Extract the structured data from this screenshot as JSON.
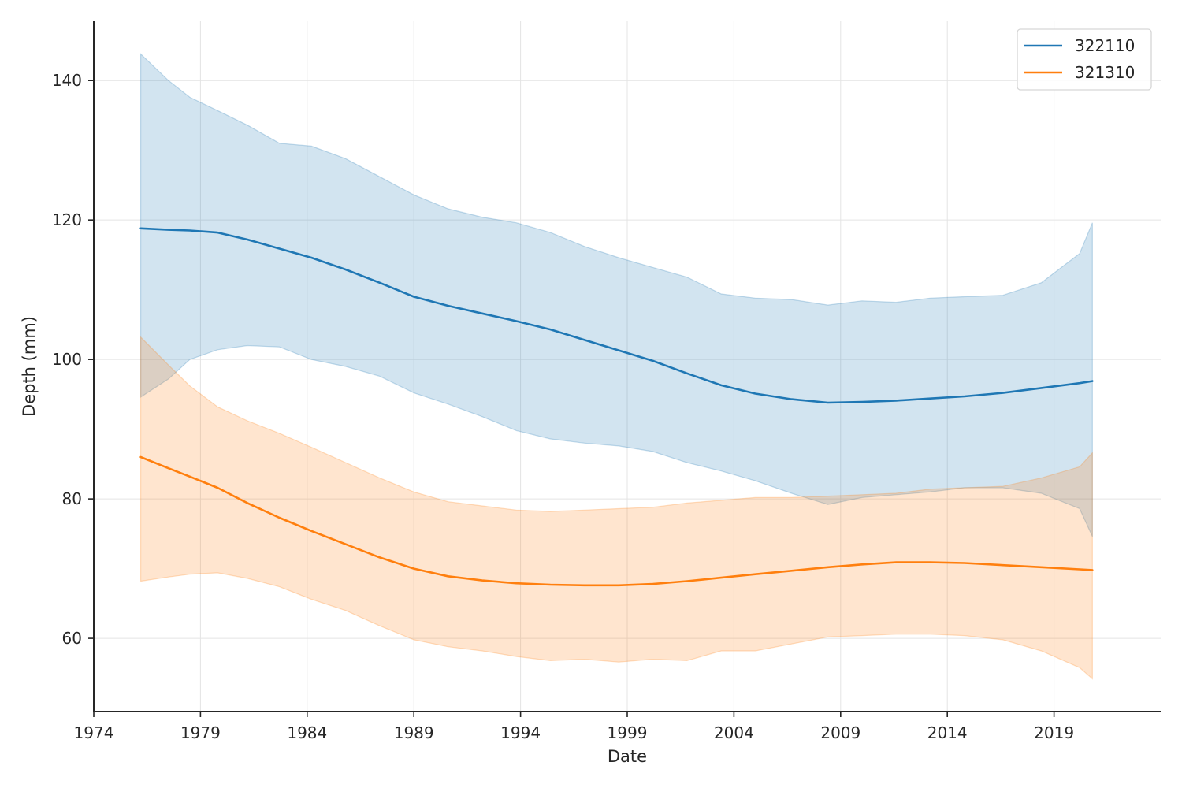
{
  "chart_data": {
    "type": "line",
    "title": "",
    "xlabel": "Date",
    "ylabel": "Depth (mm)",
    "xlim": [
      1974,
      2024
    ],
    "ylim": [
      49.5,
      148.5
    ],
    "xticks": [
      1974,
      1979,
      1984,
      1989,
      1994,
      1999,
      2004,
      2009,
      2014,
      2019
    ],
    "yticks": [
      60,
      80,
      100,
      120,
      140
    ],
    "grid": true,
    "legend_position": "top-right",
    "series": [
      {
        "name": "322110",
        "color": "#1f77b4",
        "x": [
          1976.2,
          1977.5,
          1978.5,
          1979.8,
          1981.2,
          1982.7,
          1984.2,
          1985.8,
          1987.4,
          1989.0,
          1990.6,
          1992.2,
          1993.8,
          1995.4,
          1997.0,
          1998.6,
          2000.2,
          2001.8,
          2003.4,
          2005.0,
          2006.7,
          2008.4,
          2010.0,
          2011.6,
          2013.2,
          2014.8,
          2016.6,
          2018.4,
          2020.2,
          2020.8
        ],
        "y": [
          118.8,
          118.6,
          118.5,
          118.2,
          117.2,
          115.9,
          114.6,
          112.9,
          111.0,
          109.0,
          107.7,
          106.6,
          105.5,
          104.3,
          102.8,
          101.3,
          99.8,
          98.0,
          96.3,
          95.1,
          94.3,
          93.8,
          93.9,
          94.1,
          94.4,
          94.7,
          95.2,
          95.9,
          96.6,
          96.9
        ],
        "upper": [
          143.8,
          140.0,
          137.6,
          135.7,
          133.6,
          131.0,
          130.6,
          128.8,
          126.2,
          123.6,
          121.6,
          120.4,
          119.6,
          118.2,
          116.2,
          114.6,
          113.2,
          111.8,
          109.4,
          108.8,
          108.6,
          107.8,
          108.4,
          108.2,
          108.8,
          109.0,
          109.2,
          111.0,
          115.2,
          119.6
        ],
        "lower": [
          94.6,
          97.2,
          100.0,
          101.4,
          102.0,
          101.8,
          100.0,
          99.0,
          97.6,
          95.2,
          93.6,
          91.8,
          89.8,
          88.6,
          88.0,
          87.6,
          86.8,
          85.2,
          84.0,
          82.6,
          80.8,
          79.2,
          80.2,
          80.6,
          81.0,
          81.6,
          81.6,
          80.8,
          78.6,
          74.6
        ]
      },
      {
        "name": "321310",
        "color": "#ff7f0e",
        "x": [
          1976.2,
          1977.5,
          1978.5,
          1979.8,
          1981.2,
          1982.7,
          1984.2,
          1985.8,
          1987.4,
          1989.0,
          1990.6,
          1992.2,
          1993.8,
          1995.4,
          1997.0,
          1998.6,
          2000.2,
          2001.8,
          2003.4,
          2005.0,
          2006.7,
          2008.4,
          2010.0,
          2011.6,
          2013.2,
          2014.8,
          2016.6,
          2018.4,
          2020.2,
          2020.8
        ],
        "y": [
          86.0,
          84.4,
          83.2,
          81.6,
          79.4,
          77.3,
          75.4,
          73.5,
          71.6,
          70.0,
          68.9,
          68.3,
          67.9,
          67.7,
          67.6,
          67.6,
          67.8,
          68.2,
          68.7,
          69.2,
          69.7,
          70.2,
          70.6,
          70.9,
          70.9,
          70.8,
          70.5,
          70.2,
          69.9,
          69.8
        ],
        "upper": [
          103.2,
          99.2,
          96.2,
          93.2,
          91.2,
          89.4,
          87.4,
          85.2,
          83.0,
          81.0,
          79.6,
          79.0,
          78.4,
          78.2,
          78.4,
          78.6,
          78.8,
          79.4,
          79.8,
          80.2,
          80.2,
          80.4,
          80.6,
          80.8,
          81.4,
          81.6,
          81.8,
          83.0,
          84.6,
          86.6
        ],
        "lower": [
          68.2,
          68.8,
          69.2,
          69.4,
          68.6,
          67.4,
          65.6,
          64.0,
          61.8,
          59.8,
          58.8,
          58.2,
          57.4,
          56.8,
          57.0,
          56.6,
          57.0,
          56.8,
          58.2,
          58.2,
          59.2,
          60.2,
          60.4,
          60.6,
          60.6,
          60.4,
          59.8,
          58.2,
          55.8,
          54.2
        ]
      }
    ]
  }
}
